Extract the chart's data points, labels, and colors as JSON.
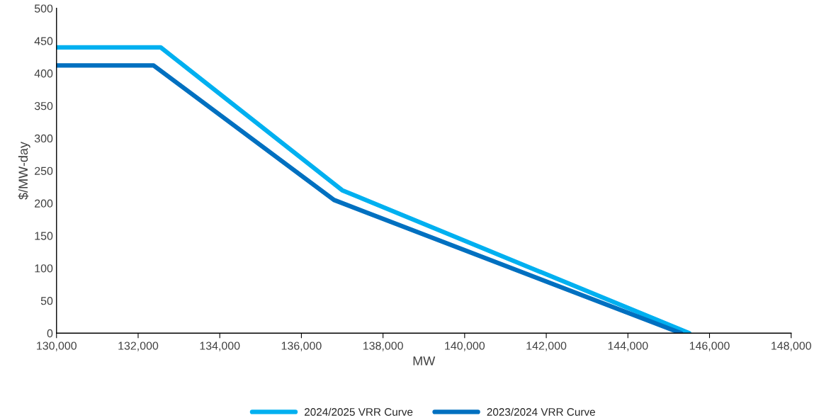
{
  "chart_data": {
    "type": "line",
    "xlabel": "MW",
    "ylabel": "$/MW-day",
    "xlim": [
      130000,
      148000
    ],
    "xticks": [
      {
        "value": 130000,
        "label": "130,000"
      },
      {
        "value": 132000,
        "label": "132,000"
      },
      {
        "value": 134000,
        "label": "134,000"
      },
      {
        "value": 136000,
        "label": "136,000"
      },
      {
        "value": 138000,
        "label": "138,000"
      },
      {
        "value": 140000,
        "label": "140,000"
      },
      {
        "value": 142000,
        "label": "142,000"
      },
      {
        "value": 144000,
        "label": "144,000"
      },
      {
        "value": 146000,
        "label": "146,000"
      },
      {
        "value": 148000,
        "label": "148,000"
      }
    ],
    "ylim": [
      0,
      500
    ],
    "yticks": [
      0,
      50,
      100,
      150,
      200,
      250,
      300,
      350,
      400,
      450,
      500
    ],
    "grid": false,
    "legend": "bottom",
    "marker": "none",
    "line_style": "solid",
    "series": [
      {
        "name": "2024/2025 VRR Curve",
        "color": "#00b0f0",
        "x": [
          130000,
          132550,
          137000,
          145500
        ],
        "values": [
          440,
          440,
          220,
          0
        ]
      },
      {
        "name": "2023/2024 VRR Curve",
        "color": "#0070c0",
        "x": [
          130000,
          132380,
          136800,
          145300
        ],
        "values": [
          412,
          412,
          205,
          0
        ]
      }
    ]
  }
}
